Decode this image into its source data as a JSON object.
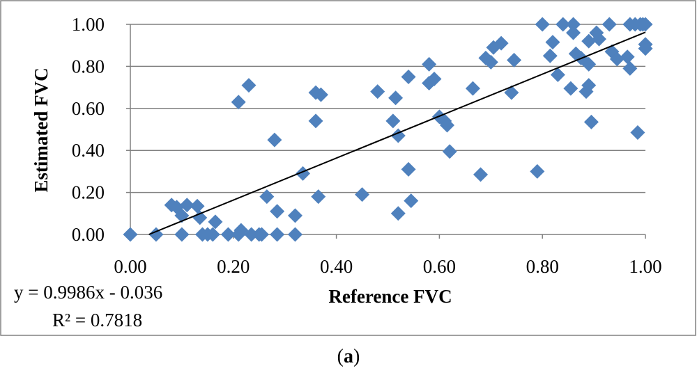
{
  "chart_data": {
    "type": "scatter",
    "title": "",
    "xlabel": "Reference FVC",
    "ylabel": "Estimated FVC",
    "xlim": [
      0,
      1
    ],
    "ylim": [
      0,
      1
    ],
    "x_ticks": [
      "0.00",
      "0.20",
      "0.40",
      "0.60",
      "0.80",
      "1.00"
    ],
    "y_ticks": [
      "0.00",
      "0.20",
      "0.40",
      "0.60",
      "0.80",
      "1.00"
    ],
    "grid": "horizontal",
    "marker_color": "#4F81BD",
    "trendline": {
      "slope": 0.9986,
      "intercept": -0.036,
      "color": "#000000"
    },
    "equation": "y = 0.9986x - 0.036",
    "r_squared": "R² = 0.7818",
    "points": [
      [
        0.0,
        0.0
      ],
      [
        0.05,
        0.0
      ],
      [
        0.08,
        0.14
      ],
      [
        0.09,
        0.13
      ],
      [
        0.1,
        0.09
      ],
      [
        0.11,
        0.14
      ],
      [
        0.13,
        0.135
      ],
      [
        0.135,
        0.08
      ],
      [
        0.1,
        0.0
      ],
      [
        0.14,
        0.0
      ],
      [
        0.15,
        0.0
      ],
      [
        0.16,
        0.0
      ],
      [
        0.165,
        0.06
      ],
      [
        0.19,
        0.0
      ],
      [
        0.21,
        0.0
      ],
      [
        0.215,
        0.02
      ],
      [
        0.235,
        0.0
      ],
      [
        0.25,
        0.0
      ],
      [
        0.255,
        0.0
      ],
      [
        0.285,
        0.0
      ],
      [
        0.32,
        0.0
      ],
      [
        0.21,
        0.63
      ],
      [
        0.23,
        0.71
      ],
      [
        0.265,
        0.18
      ],
      [
        0.28,
        0.45
      ],
      [
        0.285,
        0.11
      ],
      [
        0.32,
        0.09
      ],
      [
        0.335,
        0.29
      ],
      [
        0.36,
        0.54
      ],
      [
        0.36,
        0.675
      ],
      [
        0.37,
        0.665
      ],
      [
        0.365,
        0.18
      ],
      [
        0.45,
        0.19
      ],
      [
        0.48,
        0.68
      ],
      [
        0.51,
        0.54
      ],
      [
        0.515,
        0.65
      ],
      [
        0.52,
        0.47
      ],
      [
        0.52,
        0.1
      ],
      [
        0.54,
        0.31
      ],
      [
        0.54,
        0.75
      ],
      [
        0.545,
        0.16
      ],
      [
        0.58,
        0.81
      ],
      [
        0.58,
        0.72
      ],
      [
        0.59,
        0.74
      ],
      [
        0.6,
        0.56
      ],
      [
        0.61,
        0.54
      ],
      [
        0.615,
        0.52
      ],
      [
        0.62,
        0.395
      ],
      [
        0.665,
        0.695
      ],
      [
        0.68,
        0.285
      ],
      [
        0.69,
        0.84
      ],
      [
        0.7,
        0.82
      ],
      [
        0.705,
        0.89
      ],
      [
        0.72,
        0.91
      ],
      [
        0.74,
        0.675
      ],
      [
        0.745,
        0.83
      ],
      [
        0.79,
        0.3
      ],
      [
        0.8,
        1.0
      ],
      [
        0.815,
        0.85
      ],
      [
        0.82,
        0.915
      ],
      [
        0.83,
        0.76
      ],
      [
        0.84,
        1.0
      ],
      [
        0.855,
        0.695
      ],
      [
        0.86,
        0.96
      ],
      [
        0.86,
        1.0
      ],
      [
        0.865,
        0.86
      ],
      [
        0.875,
        0.84
      ],
      [
        0.885,
        0.68
      ],
      [
        0.89,
        0.71
      ],
      [
        0.89,
        0.81
      ],
      [
        0.89,
        0.92
      ],
      [
        0.895,
        0.535
      ],
      [
        0.905,
        0.96
      ],
      [
        0.91,
        0.93
      ],
      [
        0.93,
        1.0
      ],
      [
        0.935,
        0.87
      ],
      [
        0.945,
        0.835
      ],
      [
        0.965,
        0.845
      ],
      [
        0.97,
        0.79
      ],
      [
        0.97,
        1.0
      ],
      [
        0.98,
        1.0
      ],
      [
        0.985,
        0.485
      ],
      [
        0.99,
        1.0
      ],
      [
        0.995,
        1.0
      ],
      [
        1.0,
        0.905
      ],
      [
        1.0,
        0.885
      ],
      [
        1.0,
        1.0
      ]
    ]
  },
  "caption": {
    "open": "(",
    "letter": "a",
    "close": ")"
  }
}
